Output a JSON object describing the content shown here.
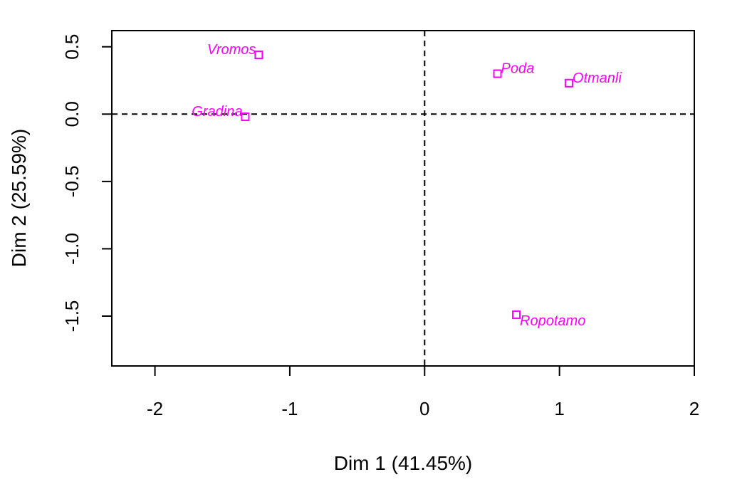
{
  "chart_data": {
    "type": "scatter",
    "title": "",
    "xlabel": "Dim 1 (41.45%)",
    "ylabel": "Dim 2 (25.59%)",
    "xlim": [
      -2.32,
      2.0
    ],
    "ylim": [
      -1.87,
      0.62
    ],
    "x_ticks": [
      -2,
      -1,
      0,
      1,
      2
    ],
    "x_tick_labels": [
      "-2",
      "-1",
      "0",
      "1",
      "2"
    ],
    "y_ticks": [
      0.5,
      0.0,
      -0.5,
      -1.0,
      -1.5
    ],
    "y_tick_labels": [
      "0.5",
      "0.0",
      "-0.5",
      "-1.0",
      "-1.5"
    ],
    "reference_lines": {
      "x": 0,
      "y": 0
    },
    "grid": false,
    "legend": "none",
    "point_color": "#ff00ff",
    "marker": "open-square",
    "points": [
      {
        "label": "Vromos",
        "x": -1.23,
        "y": 0.44,
        "label_pos": "left"
      },
      {
        "label": "Gradina",
        "x": -1.33,
        "y": -0.02,
        "label_pos": "left"
      },
      {
        "label": "Poda",
        "x": 0.54,
        "y": 0.3,
        "label_pos": "right"
      },
      {
        "label": "Otmanli",
        "x": 1.07,
        "y": 0.23,
        "label_pos": "right"
      },
      {
        "label": "Ropotamo",
        "x": 0.68,
        "y": -1.49,
        "label_pos": "below-right"
      }
    ]
  }
}
